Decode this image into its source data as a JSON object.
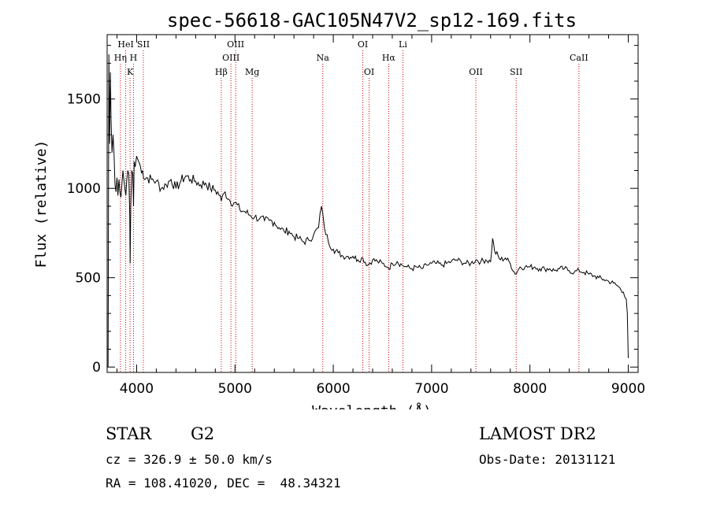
{
  "chart_data": {
    "type": "line",
    "title": "spec-56618-GAC105N47V2_sp12-169.fits",
    "xlabel": "Wavelength (Å)",
    "ylabel": "Flux (relative)",
    "xlim": [
      3700,
      9100
    ],
    "ylim": [
      -30,
      1860
    ],
    "xticks": [
      4000,
      5000,
      6000,
      7000,
      8000,
      9000
    ],
    "yticks": [
      0,
      500,
      1000,
      1500
    ],
    "grid": false,
    "line_color": "#000000",
    "marker_color": "#cc0000",
    "series": [
      {
        "x": [
          3710,
          3718,
          3725,
          3733,
          3740,
          3750,
          3760,
          3770,
          3780,
          3790,
          3800,
          3810,
          3820,
          3830,
          3840,
          3850,
          3860,
          3870,
          3880,
          3890,
          3900,
          3910,
          3920,
          3930,
          3934,
          3940,
          3950,
          3960,
          3968,
          3975,
          3985,
          4000,
          4020,
          4040,
          4060,
          4080,
          4100,
          4150,
          4200,
          4250,
          4300,
          4350,
          4400,
          4450,
          4500,
          4550,
          4600,
          4650,
          4700,
          4750,
          4800,
          4850,
          4861,
          4900,
          4950,
          5000,
          5050,
          5100,
          5150,
          5200,
          5250,
          5300,
          5350,
          5400,
          5450,
          5500,
          5550,
          5600,
          5650,
          5700,
          5750,
          5800,
          5850,
          5880,
          5893,
          5910,
          5950,
          6000,
          6050,
          6100,
          6150,
          6200,
          6250,
          6300,
          6350,
          6400,
          6450,
          6500,
          6550,
          6563,
          6600,
          6650,
          6700,
          6750,
          6800,
          6850,
          6900,
          6950,
          7000,
          7050,
          7100,
          7150,
          7200,
          7250,
          7300,
          7350,
          7400,
          7450,
          7500,
          7550,
          7600,
          7620,
          7640,
          7700,
          7750,
          7800,
          7850,
          7900,
          7950,
          8000,
          8050,
          8100,
          8150,
          8200,
          8250,
          8300,
          8350,
          8400,
          8450,
          8500,
          8550,
          8600,
          8650,
          8700,
          8750,
          8800,
          8850,
          8900,
          8950,
          8980,
          8990,
          9000
        ],
        "y": [
          0,
          1750,
          1250,
          1650,
          1380,
          1200,
          1300,
          1200,
          1020,
          980,
          1060,
          960,
          1050,
          980,
          950,
          1020,
          1100,
          1050,
          1000,
          960,
          1050,
          1100,
          1080,
          850,
          580,
          900,
          1100,
          1080,
          900,
          1150,
          1120,
          1180,
          1150,
          1120,
          1100,
          1050,
          1060,
          1050,
          1040,
          1000,
          1020,
          1050,
          1000,
          1040,
          1070,
          1050,
          1040,
          1020,
          1030,
          1000,
          990,
          960,
          930,
          980,
          930,
          920,
          880,
          870,
          850,
          840,
          830,
          820,
          820,
          810,
          780,
          760,
          760,
          730,
          720,
          700,
          710,
          740,
          780,
          900,
          860,
          780,
          700,
          660,
          640,
          620,
          620,
          620,
          600,
          610,
          570,
          600,
          590,
          580,
          560,
          550,
          580,
          590,
          570,
          560,
          550,
          560,
          550,
          570,
          580,
          580,
          570,
          580,
          590,
          600,
          590,
          580,
          580,
          600,
          590,
          600,
          590,
          720,
          650,
          600,
          610,
          580,
          520,
          560,
          560,
          560,
          560,
          550,
          550,
          550,
          540,
          550,
          550,
          540,
          530,
          540,
          530,
          520,
          510,
          500,
          490,
          480,
          470,
          450,
          420,
          380,
          300,
          50
        ]
      }
    ],
    "lines": [
      {
        "x": 3889,
        "label": "HeI",
        "row": 0
      },
      {
        "x": 3835,
        "label": "Hη",
        "row": 1
      },
      {
        "x": 3933,
        "label": "K",
        "row": 2
      },
      {
        "x": 3968,
        "label": "H",
        "row": 1
      },
      {
        "x": 4068,
        "label": "SII",
        "row": 0
      },
      {
        "x": 4861,
        "label": "Hβ",
        "row": 2
      },
      {
        "x": 4959,
        "label": "OIII",
        "row": 1
      },
      {
        "x": 5007,
        "label": "OIII",
        "row": 0
      },
      {
        "x": 5175,
        "label": "Mg",
        "row": 2
      },
      {
        "x": 5893,
        "label": "Na",
        "row": 1
      },
      {
        "x": 6300,
        "label": "OI",
        "row": 0
      },
      {
        "x": 6364,
        "label": "OI",
        "row": 2
      },
      {
        "x": 6563,
        "label": "Hα",
        "row": 1
      },
      {
        "x": 6708,
        "label": "Li",
        "row": 0
      },
      {
        "x": 7450,
        "label": "OII",
        "row": 2
      },
      {
        "x": 7860,
        "label": "SII",
        "row": 2
      },
      {
        "x": 8498,
        "label": "CaII",
        "row": 1
      }
    ]
  },
  "info": {
    "class_label": "STAR",
    "subclass": "G2",
    "survey": "LAMOST DR2",
    "cz": "cz = 326.9 ± 50.0 km/s",
    "obs_date": "Obs-Date: 20131121",
    "coords": "RA = 108.41020, DEC =  48.34321"
  }
}
